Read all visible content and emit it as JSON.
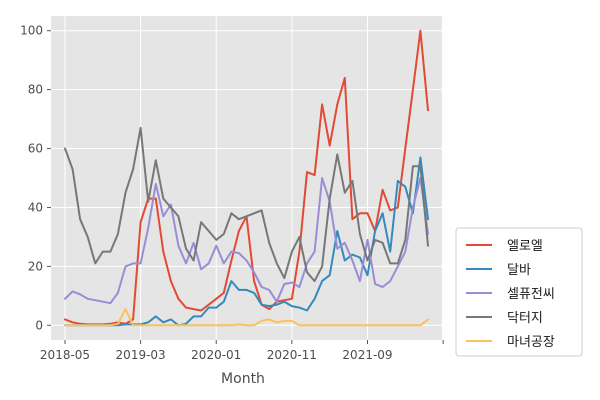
{
  "chart_data": {
    "type": "line",
    "title": "",
    "xlabel": "Month",
    "ylabel": "",
    "x": [
      "2018-05",
      "2018-06",
      "2018-07",
      "2018-08",
      "2018-09",
      "2018-10",
      "2018-11",
      "2018-12",
      "2019-01",
      "2019-02",
      "2019-03",
      "2019-04",
      "2019-05",
      "2019-06",
      "2019-07",
      "2019-08",
      "2019-09",
      "2019-10",
      "2019-11",
      "2019-12",
      "2020-01",
      "2020-02",
      "2020-03",
      "2020-04",
      "2020-05",
      "2020-06",
      "2020-07",
      "2020-08",
      "2020-09",
      "2020-10",
      "2020-11",
      "2020-12",
      "2021-01",
      "2021-02",
      "2021-03",
      "2021-04",
      "2021-05",
      "2021-06",
      "2021-07",
      "2021-08",
      "2021-09",
      "2021-10",
      "2021-11",
      "2021-12",
      "2022-01",
      "2022-02",
      "2022-03",
      "2022-04",
      "2022-05"
    ],
    "xticks": [
      "2018-05",
      "2019-03",
      "2020-01",
      "2020-11",
      "2021-09",
      ""
    ],
    "yticks": [
      0,
      20,
      40,
      60,
      80,
      100
    ],
    "ylim": [
      -5,
      105
    ],
    "grid": true,
    "legend_position": "lower-right-outside",
    "series": [
      {
        "name": "엘로엘",
        "color": "#e24a33",
        "values": [
          2,
          1,
          0.5,
          0.3,
          0.3,
          0.3,
          0.5,
          1,
          0.5,
          2,
          35,
          43,
          43,
          25,
          15,
          9,
          6,
          5.5,
          5,
          7,
          9,
          11,
          22,
          32,
          37,
          15,
          7,
          5.5,
          8,
          8.5,
          9,
          25,
          52,
          51,
          75,
          61,
          75,
          84,
          36,
          38,
          38,
          32,
          46,
          39,
          40,
          60,
          80,
          100,
          73
        ]
      },
      {
        "name": "달바",
        "color": "#348abd",
        "values": [
          0,
          0,
          0,
          0,
          0,
          0,
          0,
          0,
          0.3,
          0.3,
          0.3,
          1,
          3,
          1,
          2,
          0,
          0.5,
          3,
          3,
          6,
          6,
          8,
          15,
          12,
          12,
          11,
          7,
          6.5,
          7,
          8,
          6.5,
          6,
          5,
          9,
          15,
          17,
          32,
          22,
          24,
          23,
          17,
          32,
          38,
          25,
          49,
          47,
          38,
          57,
          36
        ]
      },
      {
        "name": "셀퓨전씨",
        "color": "#988ed5",
        "values": [
          9,
          11.5,
          10.5,
          9,
          8.5,
          8,
          7.5,
          11,
          20,
          21,
          21,
          33,
          48,
          37,
          41,
          27,
          21,
          28,
          19,
          21,
          27,
          21,
          25,
          24.5,
          22,
          18,
          13,
          12,
          8,
          14,
          14.5,
          13,
          21,
          25,
          50,
          42,
          26,
          28,
          22,
          15,
          29,
          14,
          13,
          15,
          20,
          25,
          40,
          50,
          31
        ]
      },
      {
        "name": "닥터지",
        "color": "#777777",
        "values": [
          60,
          53,
          36,
          30,
          21,
          25,
          25,
          31,
          45,
          53,
          67,
          42,
          56,
          43,
          40,
          37,
          26,
          22,
          35,
          32,
          29,
          31,
          38,
          36,
          37,
          38,
          39,
          28,
          21,
          16,
          25,
          30,
          18,
          15,
          20,
          43,
          58,
          45,
          49,
          31,
          22,
          29,
          28,
          21,
          21,
          29,
          54,
          54,
          27
        ]
      },
      {
        "name": "마녀공장",
        "color": "#fbc15e",
        "values": [
          0,
          0,
          0,
          0,
          0,
          0,
          0,
          0.5,
          5.5,
          0,
          0,
          0,
          0,
          0,
          0,
          0,
          0,
          0,
          0,
          0,
          0,
          0,
          0,
          0.3,
          0,
          0,
          1.5,
          2,
          1,
          1.5,
          1.5,
          0,
          0,
          0,
          0,
          0,
          0,
          0,
          0,
          0,
          0,
          0,
          0,
          0,
          0,
          0,
          0,
          0,
          2
        ]
      }
    ]
  }
}
